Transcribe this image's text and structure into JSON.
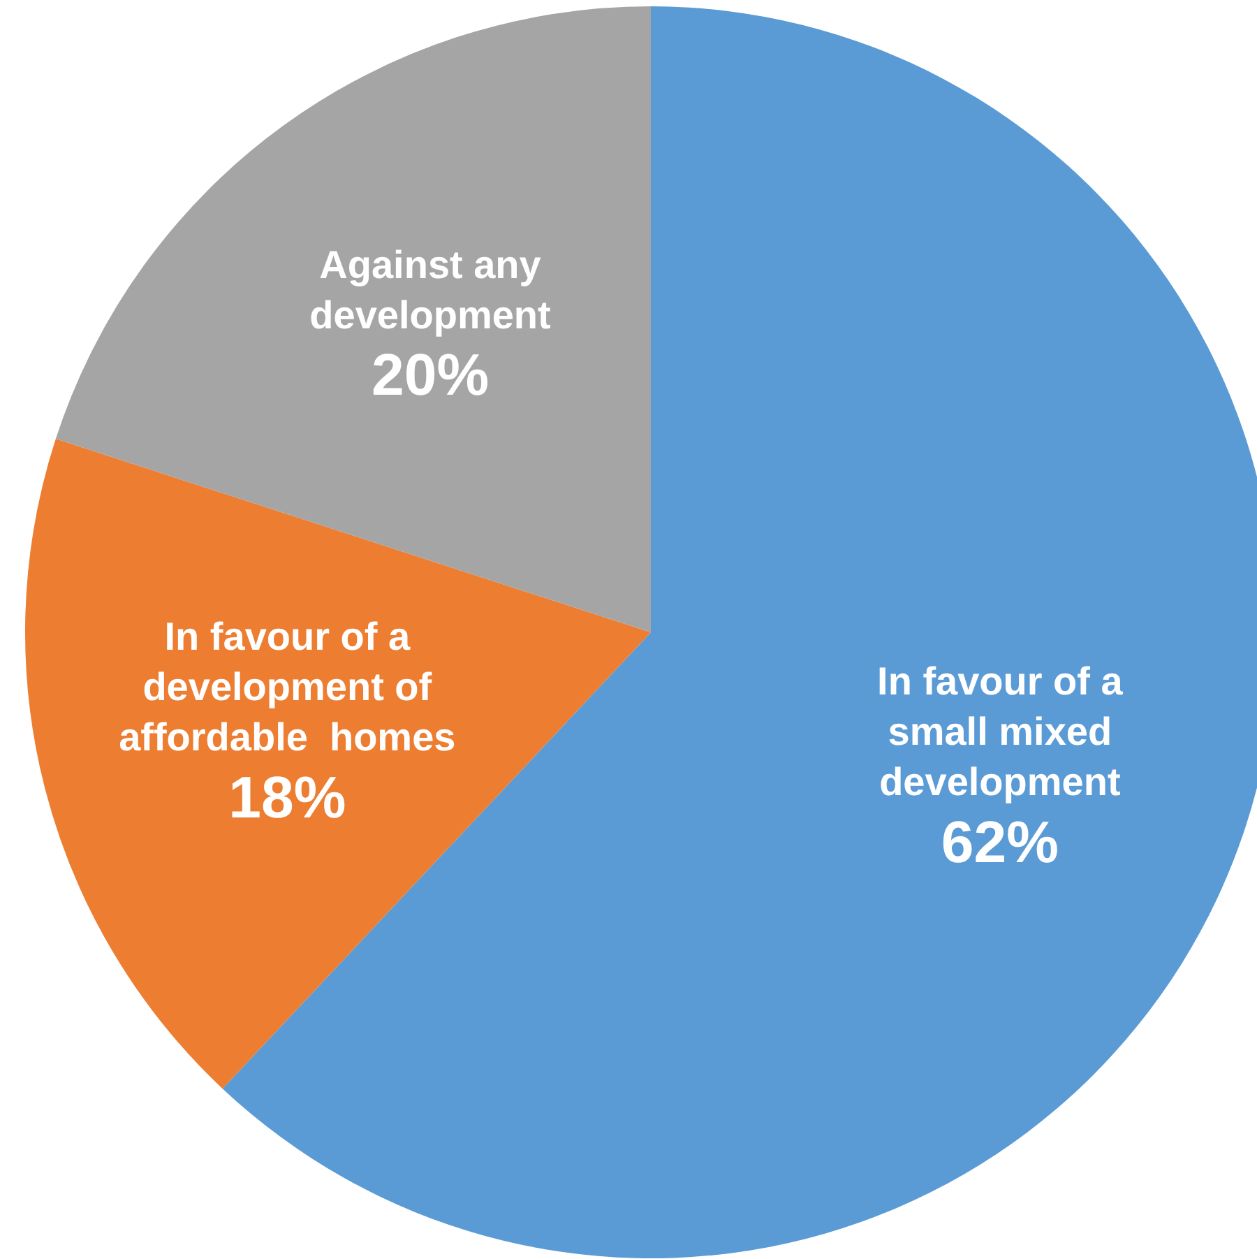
{
  "chart_data": {
    "type": "pie",
    "categories": [
      "In favour of a small mixed development",
      "In favour of a development of affordable  homes",
      "Against any development"
    ],
    "values": [
      62,
      18,
      20
    ],
    "colors": [
      "#5b9bd5",
      "#ed7d31",
      "#a5a5a5"
    ],
    "value_labels": [
      "62%",
      "18%",
      "20%"
    ],
    "legend": false
  }
}
